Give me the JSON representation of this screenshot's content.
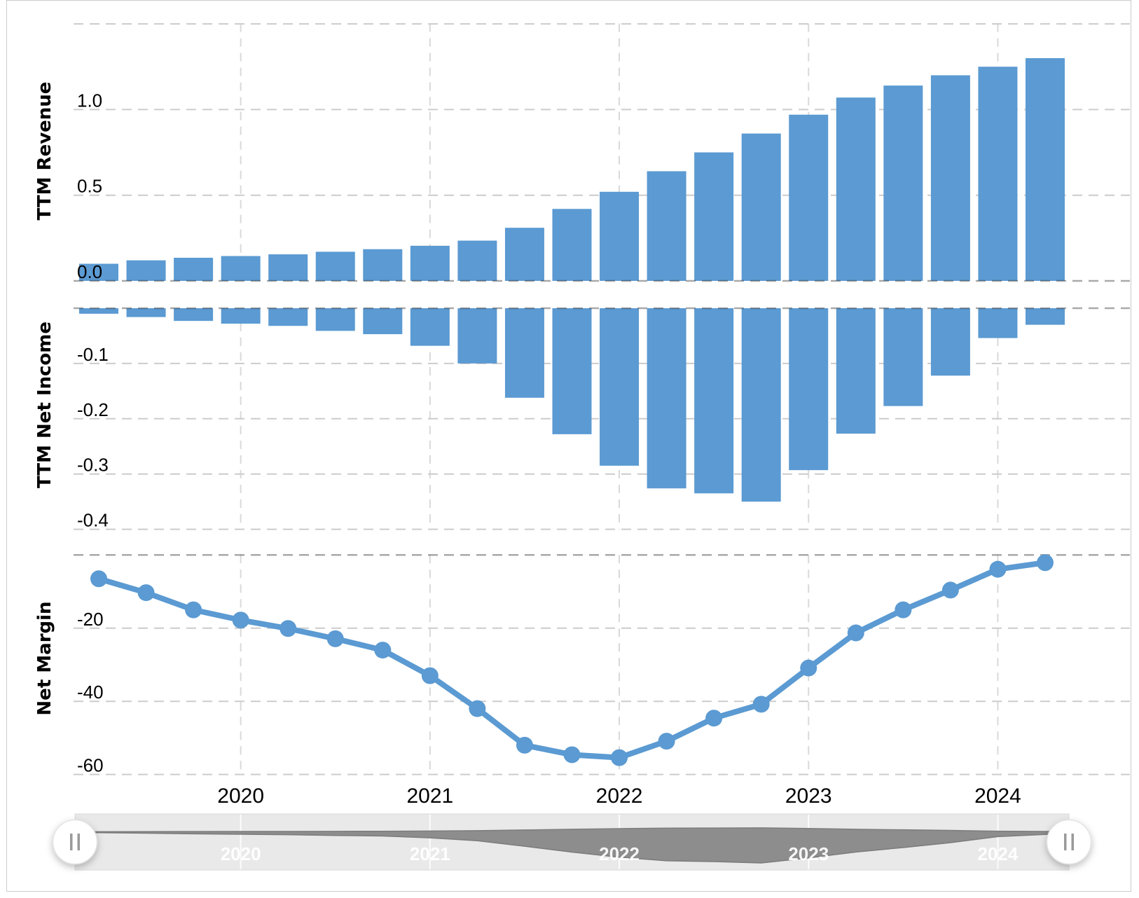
{
  "colors": {
    "bar": "#5b9ad2",
    "line": "#5b9ad2",
    "grid_light": "#cccccc",
    "grid_vertical": "#d9d9d9",
    "zero_line": "rgba(40,40,40,0.40)",
    "text": "#000000",
    "slider_track": "#e9e9e9",
    "slider_track_border": "#d9d9d9",
    "slider_shape_fill": "#8d8d8d",
    "slider_shape_stroke": "#7c7c7c",
    "slider_year_text": "rgba(255,255,255,0.92)",
    "handle_fill": "#ffffff",
    "handle_border": "#e3e3e3",
    "handle_grip": "#9a9a9a",
    "frame_border": "#cbcbcb"
  },
  "xaxis": {
    "tick_values": [
      2020,
      2021,
      2022,
      2023,
      2024
    ],
    "tick_labels": [
      "2020",
      "2021",
      "2022",
      "2023",
      "2024"
    ]
  },
  "slider": {
    "year_labels": [
      "2020",
      "2021",
      "2022",
      "2023",
      "2024"
    ],
    "year_values": [
      2020,
      2021,
      2022,
      2023,
      2024
    ],
    "left_handle_icon": "drag-grip",
    "right_handle_icon": "drag-grip",
    "silhouette_source": "abs-net-income"
  },
  "chart_data": [
    {
      "type": "bar",
      "title": "",
      "ylabel": "TTM Revenue",
      "x": [
        2019.25,
        2019.5,
        2019.75,
        2020,
        2020.25,
        2020.5,
        2020.75,
        2021,
        2021.25,
        2021.5,
        2021.75,
        2022,
        2022.25,
        2022.5,
        2022.75,
        2023,
        2023.25,
        2023.5,
        2023.75,
        2024,
        2024.25
      ],
      "values": [
        0.1,
        0.12,
        0.135,
        0.145,
        0.155,
        0.17,
        0.185,
        0.205,
        0.235,
        0.31,
        0.42,
        0.52,
        0.64,
        0.75,
        0.86,
        0.97,
        1.07,
        1.14,
        1.2,
        1.25,
        1.3
      ],
      "ylim": [
        0,
        1.5
      ],
      "yticks": [
        {
          "v": 0.0,
          "label": "0.0"
        },
        {
          "v": 0.5,
          "label": "0.5"
        },
        {
          "v": 1.0,
          "label": "1.0"
        }
      ],
      "grid_light": [
        0.5,
        1.0,
        1.5
      ],
      "zero_line": 0,
      "grid": "on",
      "legend": "none"
    },
    {
      "type": "bar",
      "title": "",
      "ylabel": "TTM Net Income",
      "x": [
        2019.25,
        2019.5,
        2019.75,
        2020,
        2020.25,
        2020.5,
        2020.75,
        2021,
        2021.25,
        2021.5,
        2021.75,
        2022,
        2022.25,
        2022.5,
        2022.75,
        2023,
        2023.25,
        2023.5,
        2023.75,
        2024,
        2024.25
      ],
      "values": [
        -0.01,
        -0.016,
        -0.023,
        -0.028,
        -0.032,
        -0.041,
        -0.047,
        -0.068,
        -0.1,
        -0.162,
        -0.228,
        -0.285,
        -0.326,
        -0.335,
        -0.35,
        -0.293,
        -0.227,
        -0.177,
        -0.122,
        -0.054,
        -0.03
      ],
      "ylim": [
        -0.4,
        0
      ],
      "yticks": [
        {
          "v": -0.1,
          "label": "-0.1"
        },
        {
          "v": -0.2,
          "label": "-0.2"
        },
        {
          "v": -0.3,
          "label": "-0.3"
        },
        {
          "v": -0.4,
          "label": "-0.4"
        }
      ],
      "grid_light": [
        -0.1,
        -0.2,
        -0.3,
        -0.4
      ],
      "zero_line": 0,
      "grid": "on",
      "legend": "none"
    },
    {
      "type": "line",
      "title": "",
      "ylabel": "Net Margin",
      "x": [
        2019.25,
        2019.5,
        2019.75,
        2020,
        2020.25,
        2020.5,
        2020.75,
        2021,
        2021.25,
        2021.5,
        2021.75,
        2022,
        2022.25,
        2022.5,
        2022.75,
        2023,
        2023.25,
        2023.5,
        2023.75,
        2024,
        2024.25
      ],
      "values": [
        -6.5,
        -10.3,
        -15.0,
        -17.8,
        -20.1,
        -22.9,
        -26.0,
        -33.0,
        -42.0,
        -52.0,
        -54.6,
        -55.4,
        -50.9,
        -44.6,
        -40.8,
        -30.9,
        -21.3,
        -15.0,
        -9.6,
        -3.9,
        -2.1
      ],
      "ylim": [
        -62,
        0
      ],
      "yticks": [
        {
          "v": -20,
          "label": "-20"
        },
        {
          "v": -40,
          "label": "-40"
        },
        {
          "v": -60,
          "label": "-60"
        }
      ],
      "grid_light": [
        -20,
        -40,
        -60
      ],
      "zero_line": 0,
      "grid": "on",
      "legend": "none"
    }
  ]
}
